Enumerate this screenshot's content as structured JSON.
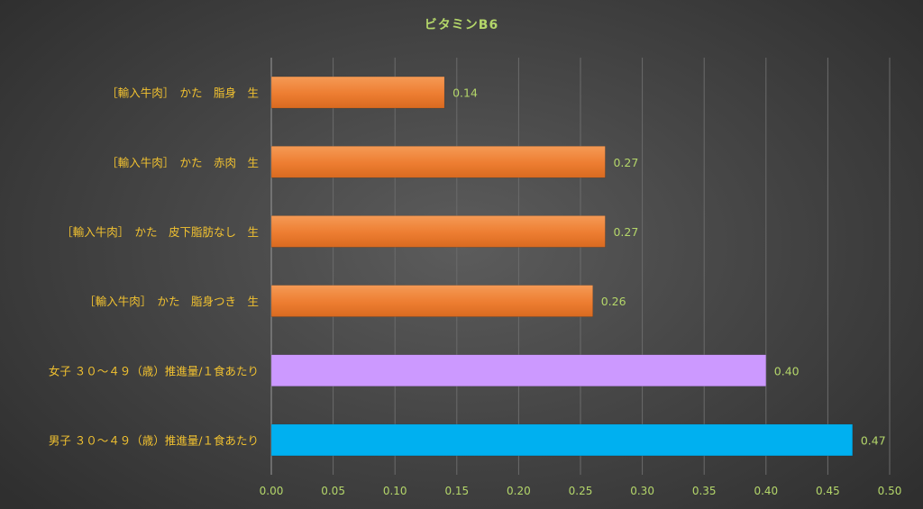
{
  "chart_data": {
    "type": "bar",
    "orientation": "horizontal",
    "title": "ビタミンB6",
    "categories": [
      "［輸入牛肉］　かた　脂身　生",
      "［輸入牛肉］　かた　赤肉　生",
      "［輸入牛肉］　かた　皮下脂肪なし　生",
      "［輸入牛肉］　かた　脂身つき　生",
      "女子 ３０～４９（歳）推進量/１食あたり",
      "男子 ３０～４９（歳）推進量/１食あたり"
    ],
    "values": [
      0.14,
      0.27,
      0.27,
      0.26,
      0.4,
      0.47
    ],
    "value_labels": [
      "0.14",
      "0.27",
      "0.27",
      "0.26",
      "0.40",
      "0.47"
    ],
    "bar_colors": [
      "#ed7d31",
      "#ed7d31",
      "#ed7d31",
      "#ed7d31",
      "#cc99ff",
      "#00b0f0"
    ],
    "xlim": [
      0,
      0.5
    ],
    "xticks": [
      "0.00",
      "0.05",
      "0.10",
      "0.15",
      "0.20",
      "0.25",
      "0.30",
      "0.35",
      "0.40",
      "0.45",
      "0.50"
    ],
    "xlabel": "",
    "ylabel": "",
    "grid": "vertical",
    "legend": "none"
  },
  "colors": {
    "title": "#b4d66a",
    "category_label": "#f2c230",
    "value_label": "#b4d66a",
    "tick_label": "#b4d66a",
    "gridline": "#6b6b6b",
    "axis": "#9a9a9a"
  }
}
